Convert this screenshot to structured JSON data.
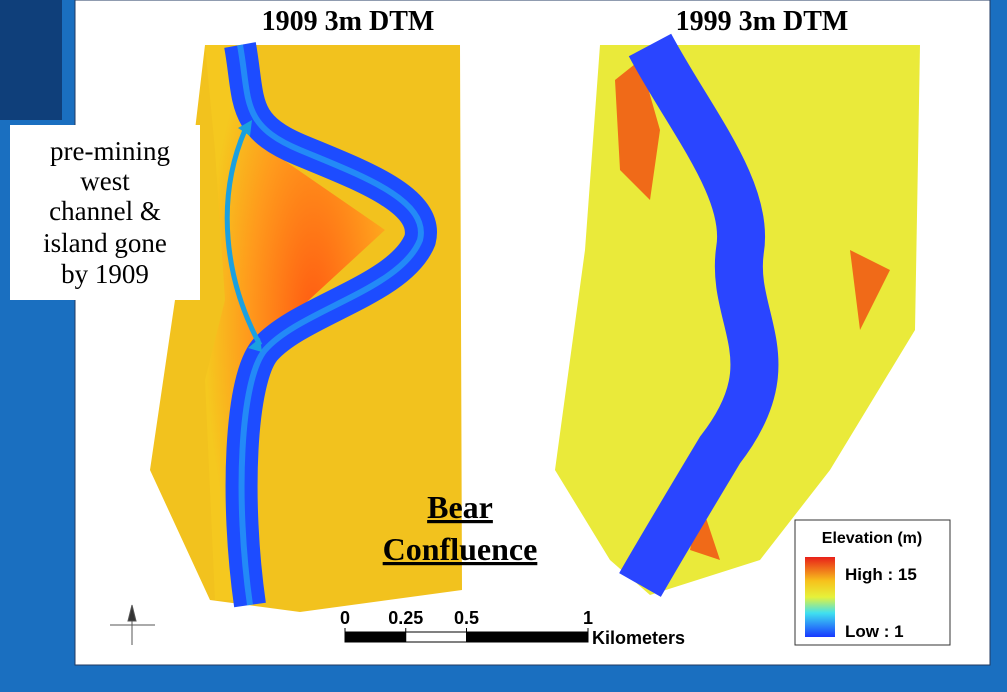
{
  "panels": [
    {
      "title": "1909 3m DTM"
    },
    {
      "title": "1999 3m DTM"
    }
  ],
  "annotation": {
    "lines": [
      "pre-mining",
      "west",
      "channel &",
      "island gone",
      "by 1909"
    ]
  },
  "site": {
    "lines": [
      "Bear",
      "Confluence"
    ]
  },
  "legend": {
    "title": "Elevation (m)",
    "high": "High : 15",
    "low": "Low : 1"
  },
  "scale_bar": {
    "ticks": [
      0,
      0.25,
      0.5,
      1
    ],
    "unit": "Kilometers"
  }
}
